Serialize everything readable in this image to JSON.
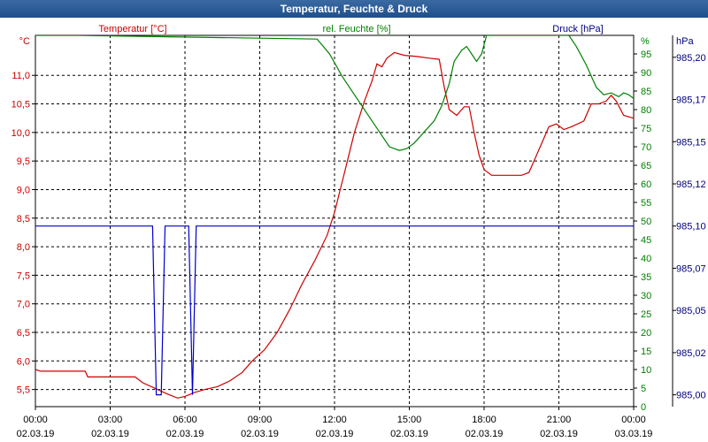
{
  "window": {
    "title": "Temperatur, Feuchte & Druck"
  },
  "chart_data": {
    "type": "line",
    "title": "Temperatur, Feuchte & Druck",
    "grid": true,
    "x_axis": {
      "ticks": [
        {
          "time": "00:00",
          "date": "02.03.19"
        },
        {
          "time": "03:00",
          "date": "02.03.19"
        },
        {
          "time": "06:00",
          "date": "02.03.19"
        },
        {
          "time": "09:00",
          "date": "02.03.19"
        },
        {
          "time": "12:00",
          "date": "02.03.19"
        },
        {
          "time": "15:00",
          "date": "02.03.19"
        },
        {
          "time": "18:00",
          "date": "02.03.19"
        },
        {
          "time": "21:00",
          "date": "02.03.19"
        },
        {
          "time": "00:00",
          "date": "03.03.19"
        }
      ],
      "range_hours": [
        0,
        24
      ]
    },
    "axes": {
      "temperature": {
        "label": "Temperatur [°C]",
        "unit": "°C",
        "color": "#cc0000",
        "ylim": [
          5.2,
          11.7
        ],
        "ticks": [
          "5,5",
          "6,0",
          "6,5",
          "7,0",
          "7,5",
          "8,0",
          "8,5",
          "9,0",
          "9,5",
          "10,0",
          "10,5",
          "11,0"
        ]
      },
      "humidity": {
        "label": "rel. Feuchte [%]",
        "unit": "%",
        "color": "#008000",
        "ylim": [
          0,
          100
        ],
        "ticks": [
          "0",
          "5",
          "10",
          "15",
          "20",
          "25",
          "30",
          "35",
          "40",
          "45",
          "50",
          "55",
          "60",
          "65",
          "70",
          "75",
          "80",
          "85",
          "90",
          "95"
        ]
      },
      "pressure": {
        "label": "Druck [hPa]",
        "unit": "hPa",
        "color": "#000080",
        "ylim": [
          984.993,
          985.213
        ],
        "ticks": [
          "985,00",
          "985,02",
          "985,05",
          "985,07",
          "985,10",
          "985,12",
          "985,15",
          "985,17",
          "985,20"
        ],
        "tick_values": [
          985.0,
          985.025,
          985.05,
          985.075,
          985.1,
          985.125,
          985.15,
          985.175,
          985.2
        ]
      }
    },
    "series": [
      {
        "name": "Temperatur [°C]",
        "axis": "temperature",
        "color": "#cc0000",
        "points": [
          [
            0,
            5.85
          ],
          [
            0.2,
            5.82
          ],
          [
            2,
            5.82
          ],
          [
            2.1,
            5.72
          ],
          [
            4,
            5.72
          ],
          [
            4.3,
            5.62
          ],
          [
            4.8,
            5.52
          ],
          [
            5.3,
            5.42
          ],
          [
            5.7,
            5.35
          ],
          [
            6,
            5.38
          ],
          [
            6.4,
            5.45
          ],
          [
            6.8,
            5.5
          ],
          [
            7.3,
            5.55
          ],
          [
            7.8,
            5.65
          ],
          [
            8.3,
            5.8
          ],
          [
            8.7,
            6.0
          ],
          [
            9.2,
            6.2
          ],
          [
            9.7,
            6.5
          ],
          [
            10.2,
            6.9
          ],
          [
            10.7,
            7.35
          ],
          [
            11.2,
            7.75
          ],
          [
            11.7,
            8.2
          ],
          [
            12,
            8.6
          ],
          [
            12.4,
            9.3
          ],
          [
            12.8,
            10.0
          ],
          [
            13.2,
            10.55
          ],
          [
            13.5,
            10.9
          ],
          [
            13.7,
            11.2
          ],
          [
            13.9,
            11.15
          ],
          [
            14.1,
            11.3
          ],
          [
            14.4,
            11.4
          ],
          [
            14.8,
            11.35
          ],
          [
            15.3,
            11.33
          ],
          [
            15.8,
            11.3
          ],
          [
            16.2,
            11.28
          ],
          [
            16.4,
            10.8
          ],
          [
            16.6,
            10.4
          ],
          [
            16.9,
            10.3
          ],
          [
            17.2,
            10.45
          ],
          [
            17.4,
            10.45
          ],
          [
            17.6,
            10.0
          ],
          [
            17.8,
            9.6
          ],
          [
            18,
            9.35
          ],
          [
            18.3,
            9.25
          ],
          [
            19.5,
            9.25
          ],
          [
            19.8,
            9.3
          ],
          [
            20.2,
            9.7
          ],
          [
            20.6,
            10.1
          ],
          [
            20.9,
            10.15
          ],
          [
            21.2,
            10.05
          ],
          [
            21.5,
            10.1
          ],
          [
            22,
            10.2
          ],
          [
            22.3,
            10.5
          ],
          [
            22.6,
            10.5
          ],
          [
            22.9,
            10.55
          ],
          [
            23.1,
            10.65
          ],
          [
            23.3,
            10.55
          ],
          [
            23.6,
            10.3
          ],
          [
            24,
            10.25
          ]
        ]
      },
      {
        "name": "rel. Feuchte [%]",
        "axis": "humidity",
        "color": "#008000",
        "points": [
          [
            0,
            100
          ],
          [
            1.7,
            100
          ],
          [
            11.3,
            99
          ],
          [
            11.8,
            95
          ],
          [
            12.3,
            89
          ],
          [
            12.8,
            84
          ],
          [
            13.3,
            79
          ],
          [
            13.8,
            74
          ],
          [
            14.2,
            70
          ],
          [
            14.6,
            69
          ],
          [
            14.9,
            69.5
          ],
          [
            15.2,
            71
          ],
          [
            15.6,
            74
          ],
          [
            16,
            77
          ],
          [
            16.3,
            81
          ],
          [
            16.6,
            87
          ],
          [
            16.8,
            93
          ],
          [
            17.1,
            96
          ],
          [
            17.3,
            97
          ],
          [
            17.5,
            95
          ],
          [
            17.7,
            93
          ],
          [
            17.9,
            95
          ],
          [
            18.1,
            100
          ],
          [
            18.4,
            100
          ],
          [
            21.4,
            100
          ],
          [
            21.7,
            97
          ],
          [
            22.1,
            92
          ],
          [
            22.5,
            86
          ],
          [
            22.8,
            84
          ],
          [
            23.1,
            84.5
          ],
          [
            23.4,
            83.5
          ],
          [
            23.6,
            84.5
          ],
          [
            23.8,
            84
          ],
          [
            24,
            83
          ]
        ]
      },
      {
        "name": "Druck [hPa]",
        "axis": "pressure",
        "color": "#0000cc",
        "points": [
          [
            0,
            985.1
          ],
          [
            4.7,
            985.1
          ],
          [
            4.85,
            985.0
          ],
          [
            5.05,
            985.0
          ],
          [
            5.2,
            985.1
          ],
          [
            6.15,
            985.1
          ],
          [
            6.3,
            985.0
          ],
          [
            6.45,
            985.1
          ],
          [
            24,
            985.1
          ]
        ]
      }
    ]
  }
}
